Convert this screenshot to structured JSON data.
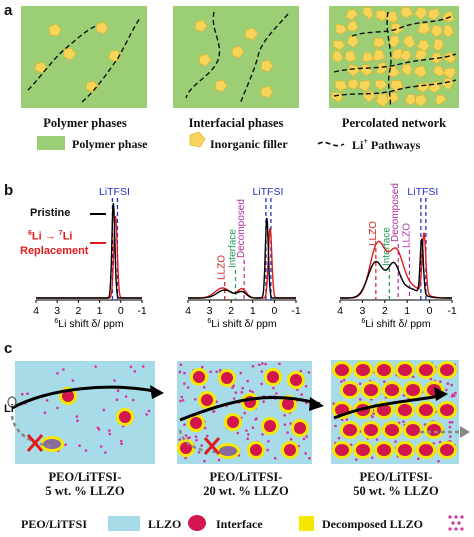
{
  "panel_a": {
    "letter": "a",
    "captions": [
      "Polymer phases",
      "Interfacial phases",
      "Percolated network"
    ],
    "legend": {
      "polymer": "Polymer phase",
      "filler": "Inorganic filler",
      "pathway": "Li",
      "pathway_sup": "+",
      "pathway_tail": " Pathways"
    },
    "colors": {
      "polymer": "#9ccf75",
      "filler": "#f7d45a"
    }
  },
  "panel_b": {
    "letter": "b",
    "legend": {
      "pristine": "Pristine",
      "repl_a": "6",
      "repl_b": "Li → ",
      "repl_c": "7",
      "repl_d": "Li",
      "repl_e": "Replacement"
    },
    "peak_labels": {
      "litfsi": "LiTFSI",
      "llzo": "LLZO",
      "interface": "Interface",
      "decomposed": "Decomposed"
    },
    "axis": {
      "ticks": [
        "4",
        "3",
        "2",
        "1",
        "0",
        "-1"
      ],
      "label_sup": "6",
      "label": "Li shift δ/ ppm"
    },
    "colors": {
      "pristine": "#000000",
      "replacement": "#e11b1b",
      "litfsi": "#2331c8",
      "llzo": "#d11b1b",
      "interface": "#1f9a5a",
      "decomposed": "#b0309e"
    }
  },
  "panel_c": {
    "letter": "c",
    "li_label": "Li",
    "captions": [
      [
        "PEO/LiTFSI-",
        "5 wt. % LLZO"
      ],
      [
        "PEO/LiTFSI-",
        "20 wt. % LLZO"
      ],
      [
        "PEO/LiTFSI-",
        "50 wt. % LLZO"
      ]
    ],
    "legend": {
      "peo": "PEO/LiTFSI",
      "llzo": "LLZO",
      "interface": "Interface",
      "decomposed": "Decomposed LLZO"
    },
    "colors": {
      "peo": "#a8dbe8",
      "llzo": "#d2174f",
      "interface": "#f5e800",
      "decomposed": "#d8309a"
    }
  }
}
